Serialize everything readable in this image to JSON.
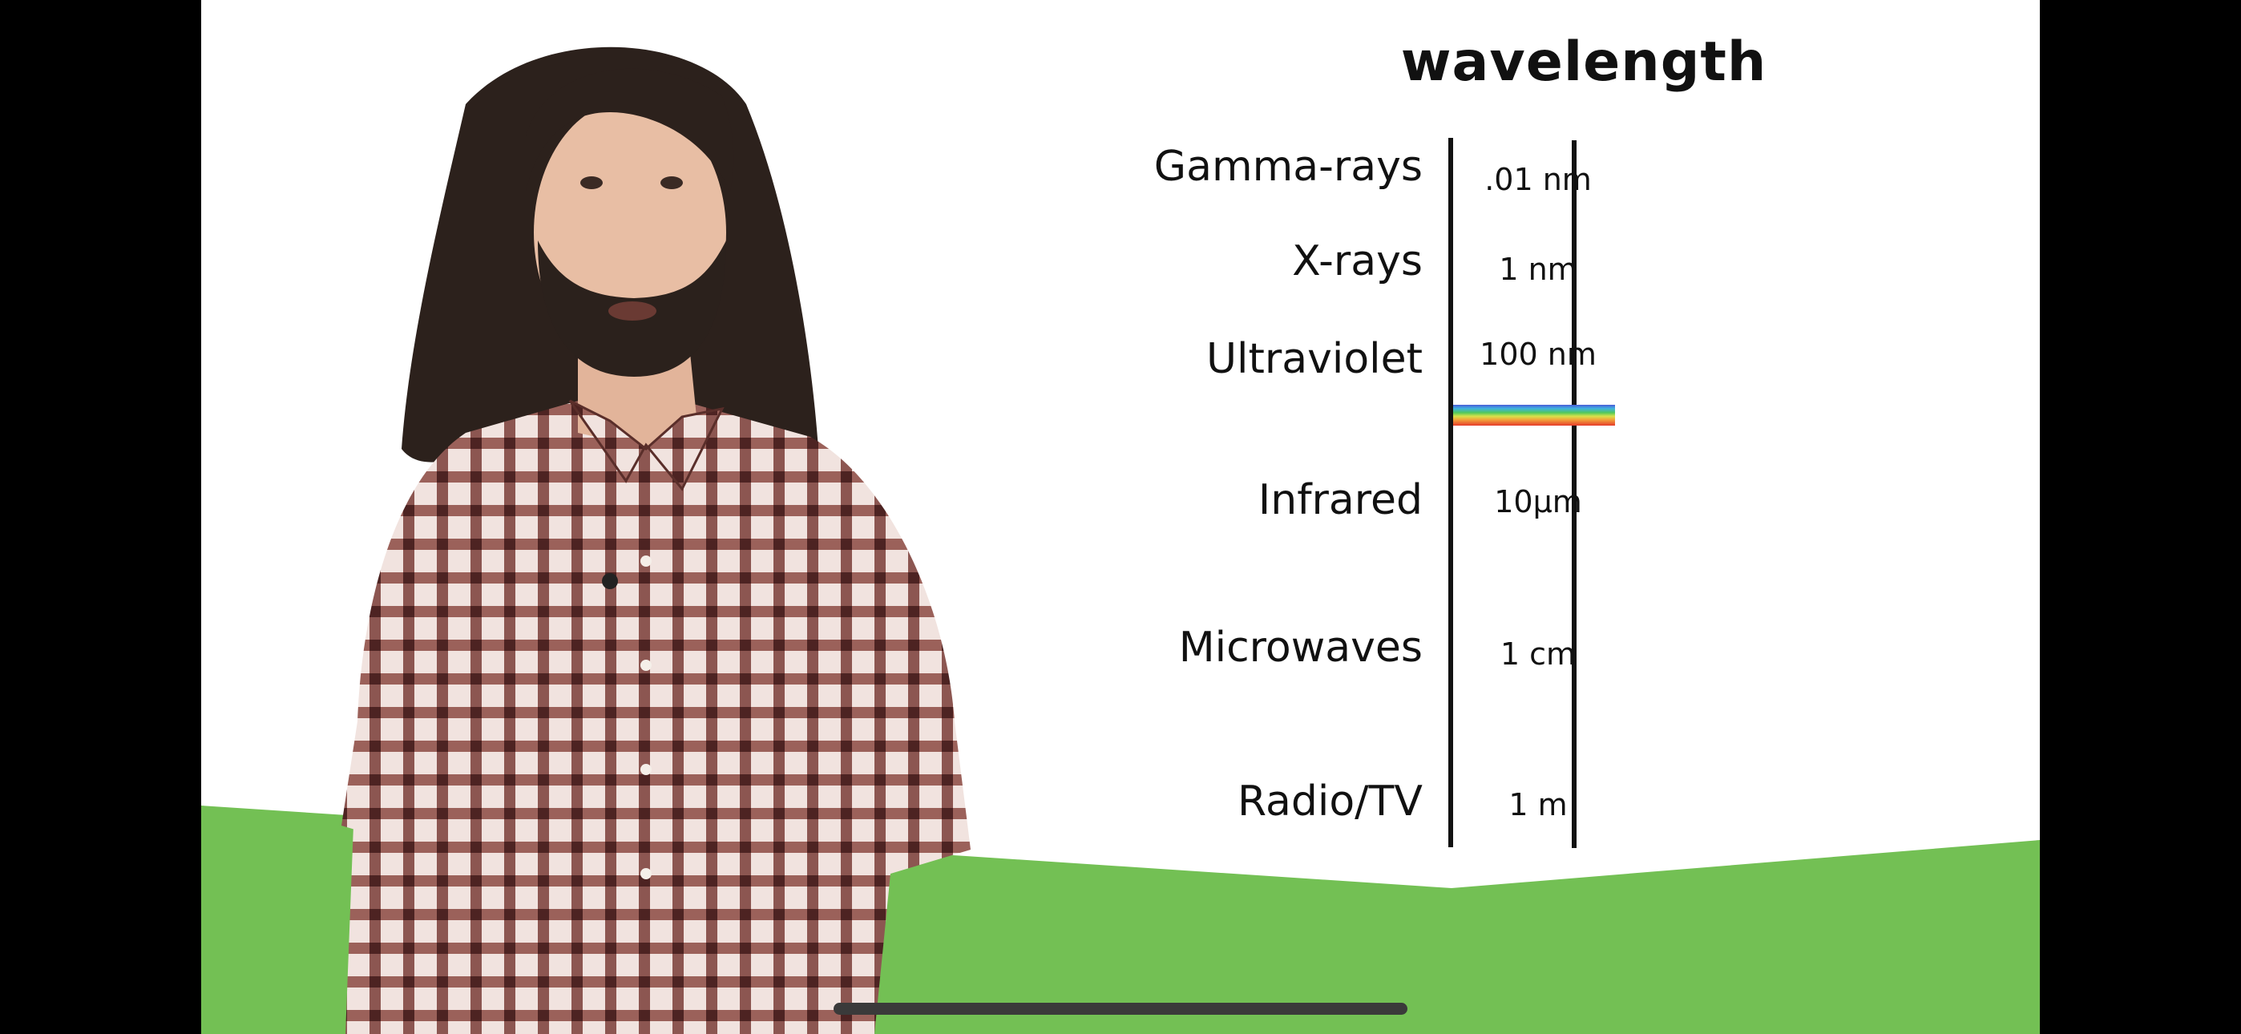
{
  "slide": {
    "title": "wavelength"
  },
  "bands": [
    {
      "name": "Gamma-rays",
      "value": ".01 nm"
    },
    {
      "name": "X-rays",
      "value": "1 nm"
    },
    {
      "name": "Ultraviolet",
      "value": "100 nm"
    },
    {
      "name": "Infrared",
      "value": "10µm"
    },
    {
      "name": "Microwaves",
      "value": "1 cm"
    },
    {
      "name": "Radio/TV",
      "value": "1 m"
    }
  ],
  "colors": {
    "ground_green": "#73c054",
    "letterbox": "#000000",
    "slide_background": "#ffffff"
  }
}
